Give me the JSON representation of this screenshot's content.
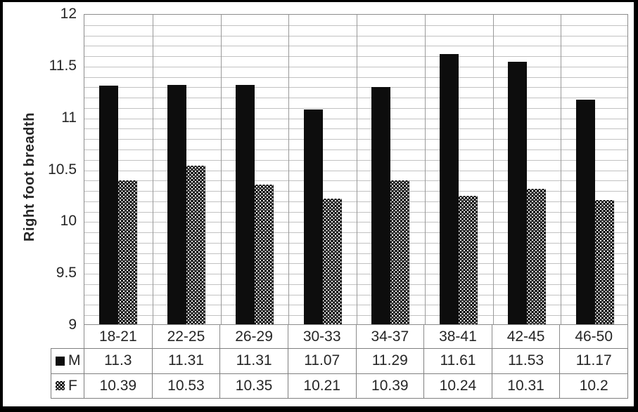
{
  "chart_data": {
    "type": "bar",
    "title": "",
    "xlabel": "",
    "ylabel": "Right foot breadth",
    "ylim": [
      9,
      12
    ],
    "y_major_step": 0.5,
    "y_minor_step": 0.1,
    "y_tick_labels": [
      "12",
      "11.5",
      "11",
      "10.5",
      "10",
      "9.5",
      "9"
    ],
    "grid": "on",
    "legend_position": "table-left",
    "categories": [
      "18-21",
      "22-25",
      "26-29",
      "30-33",
      "34-37",
      "38-41",
      "42-45",
      "46-50"
    ],
    "series": [
      {
        "name": "M",
        "pattern": "solid",
        "values": [
          11.3,
          11.31,
          11.31,
          11.07,
          11.29,
          11.61,
          11.53,
          11.17
        ]
      },
      {
        "name": "F",
        "pattern": "checker",
        "values": [
          10.39,
          10.53,
          10.35,
          10.21,
          10.39,
          10.24,
          10.31,
          10.2
        ]
      }
    ],
    "colors": {
      "bar_fill": "#0d0d0d",
      "pattern_dot": "#fafafa",
      "minor_gridline": "#c2c2c2",
      "category_gridline": "#9a9a9a",
      "plot_border": "#8c8c8c",
      "table_border": "#7f7f7f",
      "text": "#262626",
      "background": "#ffffff",
      "frame": "#000000"
    }
  }
}
